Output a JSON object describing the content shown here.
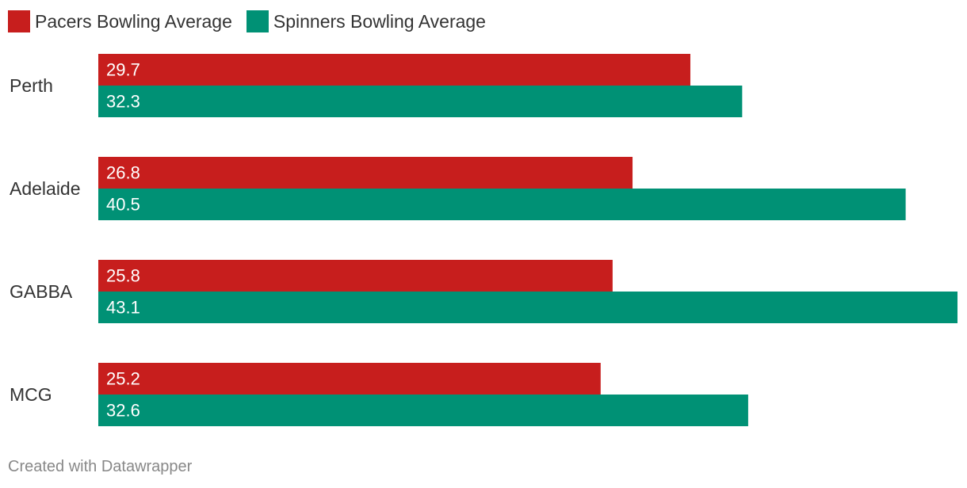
{
  "chart_data": {
    "type": "bar",
    "orientation": "horizontal",
    "categories": [
      "Perth",
      "Adelaide",
      "GABBA",
      "MCG"
    ],
    "series": [
      {
        "name": "Pacers Bowling Average",
        "color": "#c71e1d",
        "values": [
          29.7,
          26.8,
          25.8,
          25.2
        ]
      },
      {
        "name": "Spinners Bowling Average",
        "color": "#009175",
        "values": [
          32.3,
          40.5,
          43.1,
          32.6
        ]
      }
    ],
    "xlim": [
      0,
      43.1
    ],
    "grid": false,
    "data_labels": "inside-bar-start",
    "legend_position": "top-left"
  },
  "footer": {
    "credit": "Created with Datawrapper"
  }
}
